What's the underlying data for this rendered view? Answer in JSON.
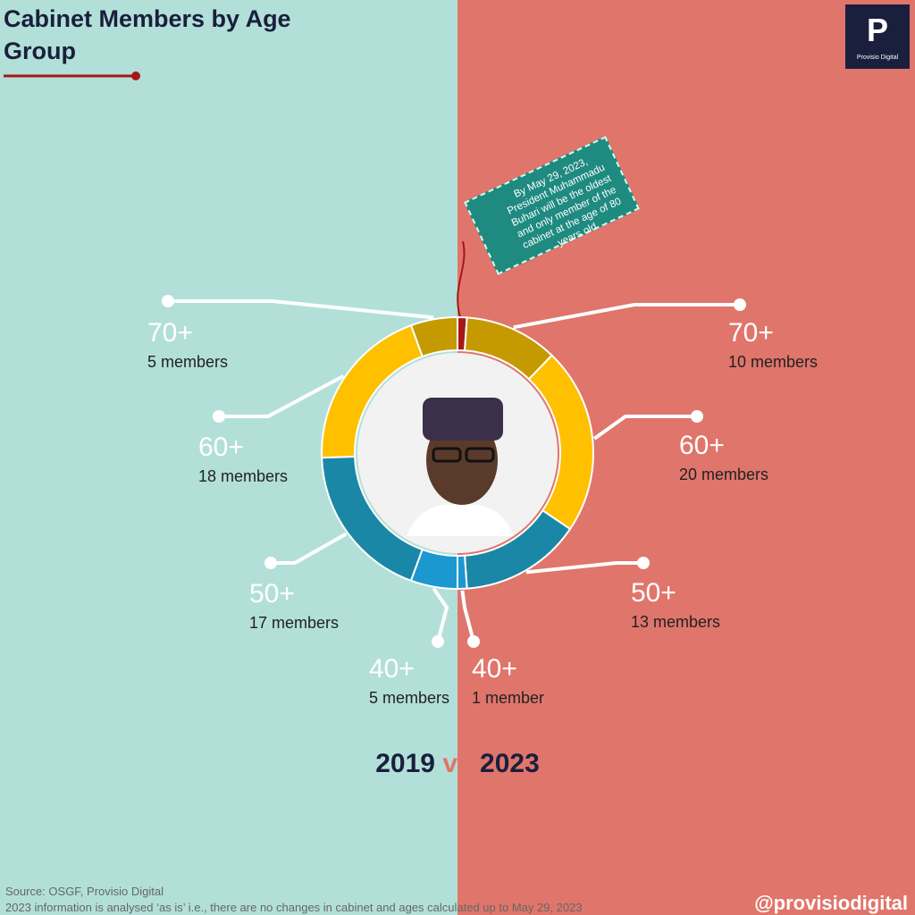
{
  "chart_data": {
    "type": "split-donut",
    "title": "Cabinet Members by Age Group",
    "halves": [
      {
        "name": "2019",
        "categories": [
          "70+",
          "60+",
          "50+",
          "40+"
        ],
        "values": [
          5,
          18,
          17,
          5
        ],
        "value_labels": [
          "5 members",
          "18 members",
          "17 members",
          "5 members"
        ],
        "colors": [
          "#c49a00",
          "#ffc000",
          "#1b87a6",
          "#1a98cf"
        ]
      },
      {
        "name": "2023",
        "categories": [
          null,
          "70+",
          "60+",
          "50+",
          "40+"
        ],
        "values": [
          1,
          10,
          20,
          13,
          1
        ],
        "value_labels": [
          null,
          "10 members",
          "20 members",
          "13 members",
          "1 member"
        ],
        "colors": [
          "#a51818",
          "#c49a00",
          "#ffc000",
          "#1b87a6",
          "#1a98cf"
        ]
      }
    ],
    "comparison_word": "vs",
    "annotation": "By May 29, 2023, President Muhammadu Buhari will be the oldest and only member of the cabinet at the age of 80 years old",
    "source": "Source: OSGF, Provisio Digital",
    "note": "2023 information is analysed ‘as is’ i.e., there are no changes in cabinet and ages calculated up to May 29, 2023",
    "handle": "@provisiodigital",
    "logo": {
      "letter": "P",
      "text": "Provisio Digital"
    }
  }
}
